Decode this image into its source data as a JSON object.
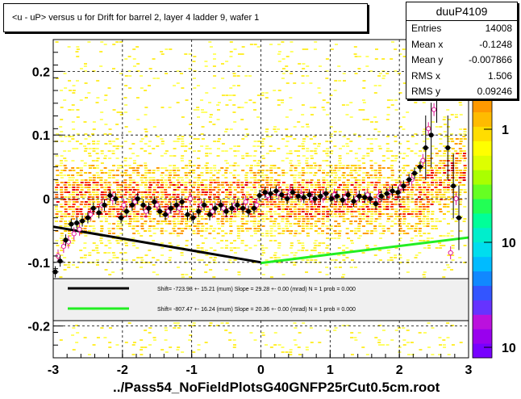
{
  "title": "<u - uP>       versus   u for Drift for barrel 2, layer 4 ladder 9, wafer 1",
  "footer": "../Pass54_NoFieldPlotsG40GNFP25rCut0.5cm.root",
  "stats": {
    "name": "duuP4109",
    "rows": [
      {
        "label": "Entries",
        "value": "14008"
      },
      {
        "label": "Mean x",
        "value": "-0.1248"
      },
      {
        "label": "Mean y",
        "value": "-0.007866"
      },
      {
        "label": "RMS x",
        "value": "1.506"
      },
      {
        "label": "RMS y",
        "value": "0.09246"
      }
    ]
  },
  "legend": {
    "entries": [
      {
        "color": "#000000",
        "text": "Shift=   -723.98 +- 15.21 (mum) Slope =    29.28 +- 0.00 (mrad)  N =  1 prob = 0.000"
      },
      {
        "color": "#22ee22",
        "text": "Shift=   -807.47 +- 16.24 (mum) Slope =    20.36 +- 0.00 (mrad)  N =  1 prob = 0.000"
      }
    ]
  },
  "colors": {
    "black_fit": "#000000",
    "green_fit": "#22ee22",
    "profile_open": "#e0189a"
  },
  "chart_data": {
    "type": "scatter",
    "xlim": [
      -3,
      3
    ],
    "ylim": [
      -0.25,
      0.25
    ],
    "x_ticks": [
      -3,
      -2,
      -1,
      0,
      1,
      2,
      3
    ],
    "y_ticks": [
      -0.2,
      -0.1,
      0,
      0.1,
      0.2
    ],
    "x_tick_labels": [
      "-3",
      "-2",
      "-1",
      "0",
      "1",
      "2",
      "3"
    ],
    "y_tick_labels": [
      "-0.2",
      "-0.1",
      "0",
      "0.1",
      "0.2"
    ],
    "z_tick_labels": [
      "1",
      "10",
      "10"
    ],
    "grid": true,
    "profile_filled": {
      "x": [
        -2.97,
        -2.9,
        -2.82,
        -2.74,
        -2.66,
        -2.58,
        -2.5,
        -2.42,
        -2.34,
        -2.26,
        -2.18,
        -2.1,
        -2.02,
        -1.94,
        -1.86,
        -1.78,
        -1.7,
        -1.62,
        -1.54,
        -1.46,
        -1.38,
        -1.3,
        -1.22,
        -1.14,
        -1.06,
        -0.98,
        -0.9,
        -0.82,
        -0.74,
        -0.66,
        -0.58,
        -0.5,
        -0.42,
        -0.34,
        -0.26,
        -0.18,
        -0.1,
        -0.02,
        0.06,
        0.14,
        0.22,
        0.3,
        0.38,
        0.46,
        0.54,
        0.62,
        0.7,
        0.78,
        0.86,
        0.94,
        1.02,
        1.1,
        1.18,
        1.26,
        1.34,
        1.42,
        1.5,
        1.58,
        1.66,
        1.74,
        1.82,
        1.9,
        1.98,
        2.06,
        2.14,
        2.22,
        2.3,
        2.38,
        2.46,
        2.54,
        2.62,
        2.7,
        2.78,
        2.86
      ],
      "y": [
        -0.115,
        -0.098,
        -0.065,
        -0.04,
        -0.038,
        -0.035,
        -0.03,
        -0.015,
        -0.022,
        -0.01,
        0.005,
        0.0,
        -0.03,
        -0.02,
        -0.01,
        0.0,
        -0.01,
        -0.015,
        -0.005,
        -0.02,
        -0.025,
        -0.015,
        -0.01,
        -0.005,
        -0.025,
        -0.03,
        -0.02,
        -0.01,
        -0.025,
        -0.015,
        -0.01,
        -0.02,
        -0.015,
        -0.01,
        -0.015,
        -0.02,
        -0.015,
        0.005,
        0.01,
        0.008,
        0.012,
        0.006,
        0.0,
        0.01,
        0.004,
        0.002,
        0.006,
        0.0,
        0.004,
        0.008,
        0.0,
        0.004,
        -0.002,
        0.006,
        -0.004,
        0.004,
        0.002,
        0.0,
        -0.008,
        0.004,
        0.008,
        0.012,
        0.01,
        0.02,
        0.03,
        0.04,
        0.05,
        0.08,
        0.1,
        0.17,
        0.23,
        0.08,
        0.02,
        -0.03
      ]
    },
    "profile_open": {
      "x": [
        -2.93,
        -2.85,
        -2.78,
        -2.7,
        -2.62,
        -2.46,
        -2.3,
        -2.14,
        -1.98,
        -1.82,
        -1.66,
        -1.5,
        -1.34,
        -1.18,
        -1.02,
        -0.86,
        -0.7,
        -0.54,
        -0.38,
        -0.22,
        -0.06,
        0.1,
        0.26,
        0.42,
        0.58,
        0.74,
        0.9,
        1.06,
        1.22,
        1.38,
        1.54,
        1.7,
        1.86,
        2.02,
        2.18,
        2.34,
        2.42,
        2.5,
        2.58,
        2.66,
        2.74,
        2.82
      ],
      "y": [
        -0.09,
        -0.075,
        -0.068,
        -0.055,
        -0.048,
        -0.025,
        -0.01,
        0.0,
        -0.01,
        -0.005,
        -0.02,
        -0.01,
        -0.02,
        -0.015,
        0.0,
        -0.01,
        -0.02,
        -0.015,
        -0.01,
        -0.005,
        -0.01,
        0.005,
        0.008,
        0.01,
        0.005,
        0.0,
        0.004,
        0.006,
        0.002,
        0.0,
        0.006,
        0.004,
        0.01,
        0.018,
        0.03,
        0.06,
        0.11,
        0.14,
        0.25,
        0.2,
        -0.085,
        0.0
      ]
    },
    "fit_black": {
      "x": [
        -3,
        0
      ],
      "y": [
        -0.044,
        -0.1
      ]
    },
    "fit_green": {
      "x": [
        0,
        3
      ],
      "y": [
        -0.101,
        -0.061
      ]
    }
  }
}
